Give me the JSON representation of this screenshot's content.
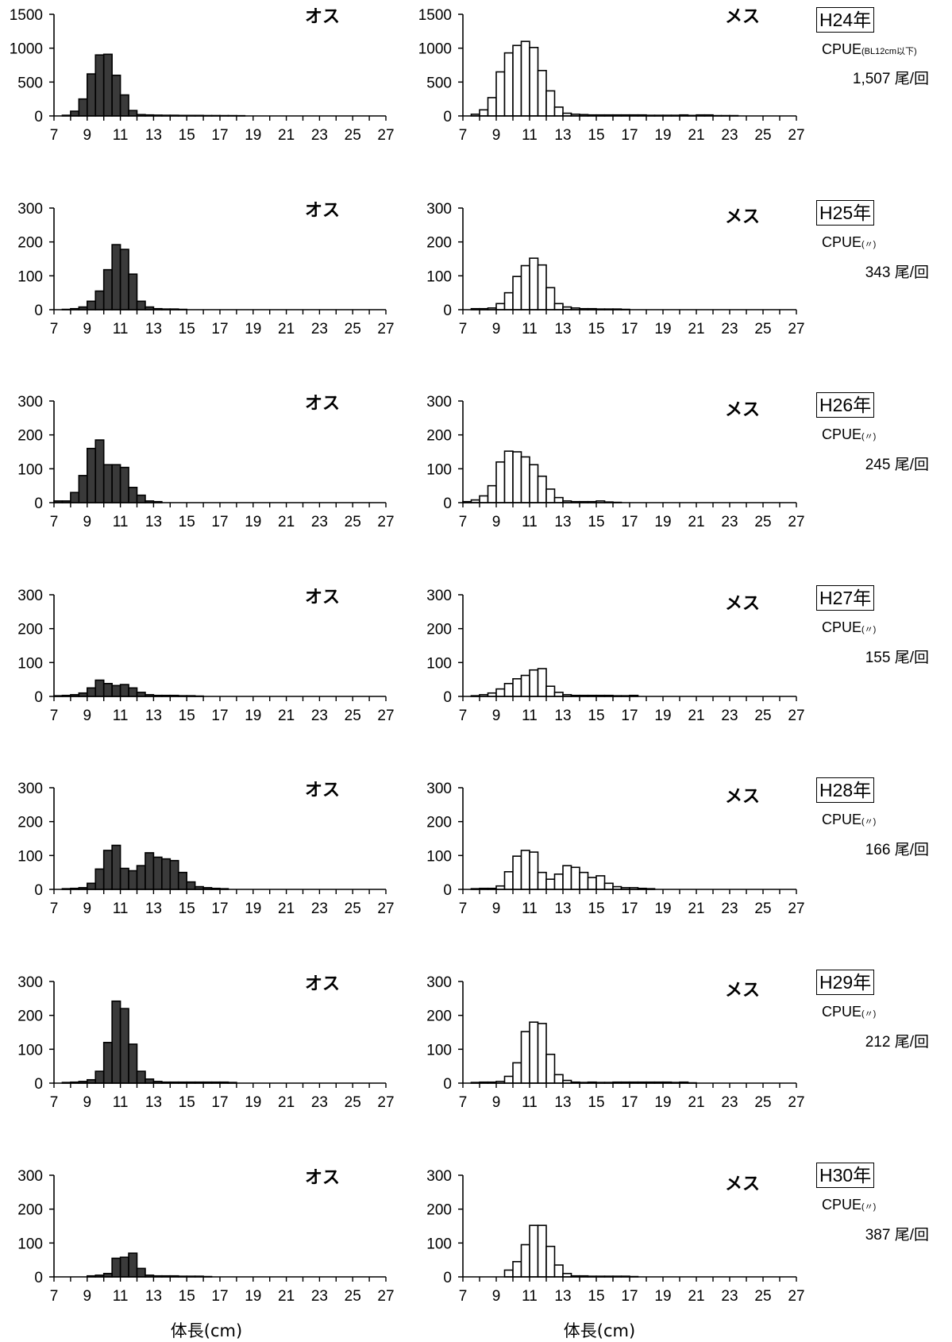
{
  "x_axis_label": "体長(cm)",
  "x_ticks": [
    "7",
    "9",
    "11",
    "13",
    "15",
    "17",
    "19",
    "21",
    "23",
    "25",
    "27"
  ],
  "male_label": "オス",
  "female_label": "メス",
  "panels": [
    {
      "year": "H24年",
      "cpue_prefix": "CPUE",
      "cpue_note": "(BL12cm以下)",
      "cpue_value": "1,507",
      "cpue_unit": "尾/回"
    },
    {
      "year": "H25年",
      "cpue_prefix": "CPUE",
      "cpue_note": "(〃)",
      "cpue_value": "343",
      "cpue_unit": "尾/回"
    },
    {
      "year": "H26年",
      "cpue_prefix": "CPUE",
      "cpue_note": "(〃)",
      "cpue_value": "245",
      "cpue_unit": "尾/回"
    },
    {
      "year": "H27年",
      "cpue_prefix": "CPUE",
      "cpue_note": "(〃)",
      "cpue_value": "155",
      "cpue_unit": "尾/回"
    },
    {
      "year": "H28年",
      "cpue_prefix": "CPUE",
      "cpue_note": "(〃)",
      "cpue_value": "166",
      "cpue_unit": "尾/回"
    },
    {
      "year": "H29年",
      "cpue_prefix": "CPUE",
      "cpue_note": "(〃)",
      "cpue_value": "212",
      "cpue_unit": "尾/回"
    },
    {
      "year": "H30年",
      "cpue_prefix": "CPUE",
      "cpue_note": "(〃)",
      "cpue_value": "387",
      "cpue_unit": "尾/回"
    }
  ],
  "chart_data": [
    {
      "type": "bar",
      "panel": "H24年",
      "sex": "オス",
      "fill": "#3a3a3a",
      "x_start": 7,
      "bin_width": 0.5,
      "ylim": [
        0,
        1500
      ],
      "yticks": [
        0,
        500,
        1000,
        1500
      ],
      "xlim": [
        7,
        27
      ],
      "values": [
        0,
        10,
        70,
        250,
        620,
        900,
        910,
        600,
        310,
        80,
        20,
        15,
        12,
        10,
        10,
        8,
        8,
        8,
        6,
        6,
        5,
        5,
        4,
        0,
        0,
        0,
        0,
        0,
        0,
        0,
        0,
        0,
        0,
        0,
        0,
        0,
        0,
        0,
        0,
        0
      ]
    },
    {
      "type": "bar",
      "panel": "H24年",
      "sex": "メス",
      "fill": "#ffffff",
      "x_start": 7,
      "bin_width": 0.5,
      "ylim": [
        0,
        1500
      ],
      "yticks": [
        0,
        500,
        1000,
        1500
      ],
      "xlim": [
        7,
        27
      ],
      "values": [
        0,
        25,
        90,
        270,
        650,
        930,
        1040,
        1100,
        1010,
        670,
        370,
        130,
        40,
        25,
        20,
        15,
        15,
        15,
        15,
        15,
        15,
        15,
        10,
        10,
        10,
        10,
        15,
        8,
        15,
        15,
        5,
        5,
        5,
        0,
        0,
        0,
        0,
        0,
        0,
        0
      ]
    },
    {
      "type": "bar",
      "panel": "H25年",
      "sex": "オス",
      "fill": "#3a3a3a",
      "x_start": 7,
      "bin_width": 0.5,
      "ylim": [
        0,
        300
      ],
      "yticks": [
        0,
        100,
        200,
        300
      ],
      "xlim": [
        7,
        27
      ],
      "values": [
        0,
        1,
        3,
        8,
        25,
        55,
        118,
        192,
        178,
        105,
        25,
        8,
        3,
        2,
        2,
        1,
        0,
        0,
        0,
        0,
        0,
        0,
        0,
        0,
        0,
        0,
        0,
        0,
        0,
        0,
        0,
        0,
        0,
        0,
        0,
        0,
        0,
        0,
        0,
        0
      ]
    },
    {
      "type": "bar",
      "panel": "H25年",
      "sex": "メス",
      "fill": "#ffffff",
      "x_start": 7,
      "bin_width": 0.5,
      "ylim": [
        0,
        300
      ],
      "yticks": [
        0,
        100,
        200,
        300
      ],
      "xlim": [
        7,
        27
      ],
      "values": [
        0,
        3,
        3,
        5,
        18,
        50,
        98,
        130,
        152,
        132,
        65,
        18,
        8,
        5,
        3,
        3,
        2,
        2,
        2,
        1,
        0,
        0,
        0,
        0,
        0,
        0,
        0,
        0,
        0,
        0,
        0,
        0,
        0,
        0,
        0,
        0,
        0,
        0,
        0,
        0
      ]
    },
    {
      "type": "bar",
      "panel": "H26年",
      "sex": "オス",
      "fill": "#3a3a3a",
      "x_start": 7,
      "bin_width": 0.5,
      "ylim": [
        0,
        300
      ],
      "yticks": [
        0,
        100,
        200,
        300
      ],
      "xlim": [
        7,
        27
      ],
      "values": [
        5,
        5,
        30,
        80,
        160,
        185,
        112,
        112,
        104,
        45,
        22,
        5,
        3,
        0,
        0,
        0,
        0,
        0,
        0,
        0,
        0,
        0,
        0,
        0,
        0,
        0,
        0,
        0,
        0,
        0,
        0,
        0,
        0,
        0,
        0,
        0,
        0,
        0,
        0,
        0
      ]
    },
    {
      "type": "bar",
      "panel": "H26年",
      "sex": "メス",
      "fill": "#ffffff",
      "x_start": 7,
      "bin_width": 0.5,
      "ylim": [
        0,
        300
      ],
      "yticks": [
        0,
        100,
        200,
        300
      ],
      "xlim": [
        7,
        27
      ],
      "values": [
        3,
        8,
        20,
        50,
        120,
        152,
        150,
        135,
        112,
        78,
        40,
        15,
        5,
        3,
        3,
        3,
        5,
        2,
        1,
        0,
        0,
        0,
        0,
        0,
        0,
        0,
        0,
        0,
        0,
        0,
        0,
        0,
        0,
        0,
        0,
        0,
        0,
        0,
        0,
        0
      ]
    },
    {
      "type": "bar",
      "panel": "H27年",
      "sex": "オス",
      "fill": "#3a3a3a",
      "x_start": 7,
      "bin_width": 0.5,
      "ylim": [
        0,
        300
      ],
      "yticks": [
        0,
        100,
        200,
        300
      ],
      "xlim": [
        7,
        27
      ],
      "values": [
        2,
        3,
        5,
        10,
        25,
        48,
        38,
        32,
        35,
        25,
        12,
        5,
        3,
        3,
        3,
        2,
        2,
        1,
        0,
        0,
        0,
        0,
        0,
        0,
        0,
        0,
        0,
        0,
        0,
        0,
        0,
        0,
        0,
        0,
        0,
        0,
        0,
        0,
        0,
        0
      ]
    },
    {
      "type": "bar",
      "panel": "H27年",
      "sex": "メス",
      "fill": "#ffffff",
      "x_start": 7,
      "bin_width": 0.5,
      "ylim": [
        0,
        300
      ],
      "yticks": [
        0,
        100,
        200,
        300
      ],
      "xlim": [
        7,
        27
      ],
      "values": [
        0,
        2,
        5,
        10,
        22,
        38,
        52,
        62,
        78,
        82,
        30,
        12,
        5,
        3,
        3,
        3,
        3,
        3,
        2,
        2,
        3,
        0,
        0,
        0,
        0,
        0,
        0,
        0,
        0,
        0,
        0,
        0,
        0,
        0,
        0,
        0,
        0,
        0,
        0,
        0
      ]
    },
    {
      "type": "bar",
      "panel": "H28年",
      "sex": "オス",
      "fill": "#3a3a3a",
      "x_start": 7,
      "bin_width": 0.5,
      "ylim": [
        0,
        300
      ],
      "yticks": [
        0,
        100,
        200,
        300
      ],
      "xlim": [
        7,
        27
      ],
      "values": [
        0,
        2,
        3,
        5,
        18,
        60,
        115,
        130,
        62,
        55,
        70,
        108,
        95,
        90,
        85,
        50,
        22,
        8,
        5,
        3,
        2,
        0,
        0,
        0,
        0,
        0,
        0,
        0,
        0,
        0,
        0,
        0,
        0,
        0,
        0,
        0,
        0,
        0,
        0,
        0
      ]
    },
    {
      "type": "bar",
      "panel": "H28年",
      "sex": "メス",
      "fill": "#ffffff",
      "x_start": 7,
      "bin_width": 0.5,
      "ylim": [
        0,
        300
      ],
      "yticks": [
        0,
        100,
        200,
        300
      ],
      "xlim": [
        7,
        27
      ],
      "values": [
        0,
        2,
        3,
        3,
        10,
        52,
        98,
        115,
        110,
        50,
        30,
        45,
        70,
        65,
        50,
        35,
        40,
        18,
        8,
        5,
        5,
        3,
        2,
        0,
        0,
        0,
        0,
        0,
        0,
        0,
        0,
        0,
        0,
        0,
        0,
        0,
        0,
        0,
        0,
        0
      ]
    },
    {
      "type": "bar",
      "panel": "H29年",
      "sex": "オス",
      "fill": "#3a3a3a",
      "x_start": 7,
      "bin_width": 0.5,
      "ylim": [
        0,
        300
      ],
      "yticks": [
        0,
        100,
        200,
        300
      ],
      "xlim": [
        7,
        27
      ],
      "values": [
        0,
        2,
        3,
        5,
        10,
        35,
        120,
        242,
        220,
        115,
        35,
        12,
        5,
        3,
        3,
        3,
        3,
        3,
        3,
        3,
        3,
        2,
        0,
        0,
        0,
        0,
        0,
        0,
        0,
        0,
        0,
        0,
        0,
        0,
        0,
        0,
        0,
        0,
        0,
        0
      ]
    },
    {
      "type": "bar",
      "panel": "H29年",
      "sex": "メス",
      "fill": "#ffffff",
      "x_start": 7,
      "bin_width": 0.5,
      "ylim": [
        0,
        300
      ],
      "yticks": [
        0,
        100,
        200,
        300
      ],
      "xlim": [
        7,
        27
      ],
      "values": [
        0,
        2,
        3,
        3,
        5,
        20,
        60,
        152,
        180,
        176,
        85,
        25,
        8,
        3,
        2,
        3,
        2,
        2,
        3,
        3,
        3,
        3,
        3,
        3,
        3,
        2,
        3,
        1,
        0,
        0,
        0,
        0,
        0,
        0,
        0,
        0,
        0,
        0,
        0,
        0
      ]
    },
    {
      "type": "bar",
      "panel": "H30年",
      "sex": "オス",
      "fill": "#3a3a3a",
      "x_start": 7,
      "bin_width": 0.5,
      "ylim": [
        0,
        300
      ],
      "yticks": [
        0,
        100,
        200,
        300
      ],
      "xlim": [
        7,
        27
      ],
      "values": [
        0,
        0,
        0,
        0,
        3,
        5,
        10,
        55,
        58,
        70,
        25,
        5,
        3,
        3,
        3,
        2,
        2,
        2,
        1,
        0,
        0,
        0,
        0,
        0,
        0,
        0,
        0,
        0,
        0,
        0,
        0,
        0,
        0,
        0,
        0,
        0,
        0,
        0,
        0,
        0
      ]
    },
    {
      "type": "bar",
      "panel": "H30年",
      "sex": "メス",
      "fill": "#ffffff",
      "x_start": 7,
      "bin_width": 0.5,
      "ylim": [
        0,
        300
      ],
      "yticks": [
        0,
        100,
        200,
        300
      ],
      "xlim": [
        7,
        27
      ],
      "values": [
        0,
        0,
        0,
        0,
        0,
        20,
        45,
        95,
        152,
        152,
        90,
        35,
        10,
        3,
        3,
        2,
        2,
        2,
        2,
        2,
        1,
        0,
        0,
        0,
        0,
        0,
        0,
        0,
        0,
        0,
        0,
        0,
        0,
        0,
        0,
        0,
        0,
        0,
        0,
        0
      ]
    }
  ]
}
